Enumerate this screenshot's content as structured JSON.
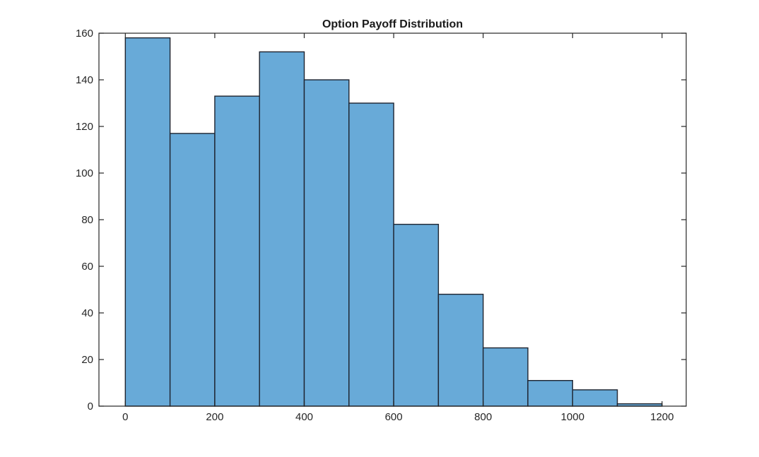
{
  "window": {
    "background_color": "#ffffff"
  },
  "chart_data": {
    "type": "bar",
    "subtype": "histogram",
    "title": "Option Payoff Distribution",
    "xlabel": "",
    "ylabel": "",
    "bin_edges": [
      0,
      100,
      200,
      300,
      400,
      500,
      600,
      700,
      800,
      900,
      1000,
      1100,
      1200
    ],
    "counts": [
      158,
      117,
      133,
      152,
      140,
      130,
      78,
      48,
      25,
      11,
      7,
      1
    ],
    "x_ticks": [
      0,
      200,
      400,
      600,
      800,
      1000,
      1200
    ],
    "y_ticks": [
      0,
      20,
      40,
      60,
      80,
      100,
      120,
      140,
      160
    ],
    "xlim": [
      -59,
      1254
    ],
    "ylim": [
      0,
      160
    ],
    "grid": false,
    "legend_position": "none",
    "colors": {
      "bar_fill": "#68aad8",
      "bar_edge": "#1e2430",
      "axis_line": "#262626",
      "tick_label": "#262626",
      "title": "#1a1a1a",
      "plot_background": "#ffffff"
    }
  }
}
